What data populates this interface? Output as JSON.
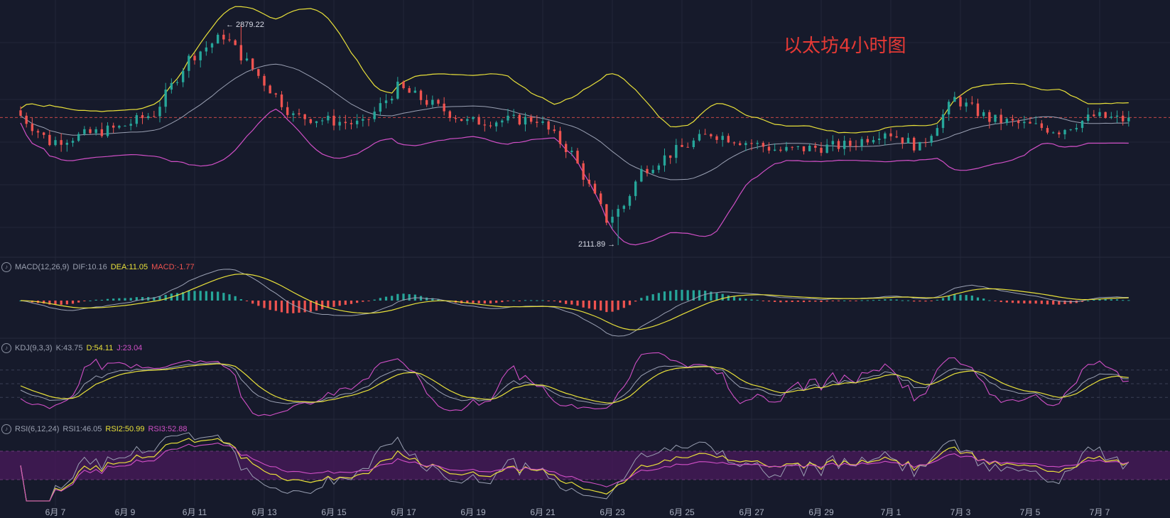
{
  "title": "以太坊4小时图",
  "annotations": {
    "high": "← 2879.22",
    "low": "2111.89 →"
  },
  "legends": {
    "macd": {
      "name": "MACD(12,26,9)",
      "dif": "DIF:10.16",
      "dea": "DEA:11.05",
      "macd": "MACD:-1.77"
    },
    "kdj": {
      "name": "KDJ(9,3,3)",
      "k": "K:43.75",
      "d": "D:54.11",
      "j": "J:23.04"
    },
    "rsi": {
      "name": "RSI(6,12,24)",
      "rsi1": "RSI1:46.05",
      "rsi2": "RSI2:50.99",
      "rsi3": "RSI3:52.88"
    }
  },
  "x_ticks": [
    "6月 7",
    "6月 9",
    "6月 11",
    "6月 13",
    "6月 15",
    "6月 17",
    "6月 19",
    "6月 21",
    "6月 23",
    "6月 25",
    "6月 27",
    "6月 29",
    "7月 1",
    "7月 3",
    "7月 5",
    "7月 7"
  ],
  "colors": {
    "up": "#26a69a",
    "down": "#ef5350",
    "bb_upper": "#e8e03a",
    "bb_mid": "#9aa0b3",
    "bb_lower": "#d04fc6",
    "title": "#e53935",
    "rsi_band": "#4a1a5c",
    "grid": "#222638"
  },
  "chart_data": {
    "type": "candlestick",
    "title": "以太坊4小时图",
    "x_tick_labels": [
      "6月 7",
      "6月 9",
      "6月 11",
      "6月 13",
      "6月 15",
      "6月 17",
      "6月 19",
      "6月 21",
      "6月 23",
      "6月 25",
      "6月 27",
      "6月 29",
      "7月 1",
      "7月 3",
      "7月 5",
      "7月 7"
    ],
    "highest_high": 2879.22,
    "lowest_low": 2111.89,
    "close_path_keypoints": [
      {
        "date": "6月 6",
        "price": 2580
      },
      {
        "date": "6月 7",
        "price": 2470
      },
      {
        "date": "6月 9",
        "price": 2520
      },
      {
        "date": "6月 10",
        "price": 2570
      },
      {
        "date": "6月 11",
        "price": 2760
      },
      {
        "date": "6月 12",
        "price": 2840
      },
      {
        "date": "6月 13",
        "price": 2700
      },
      {
        "date": "6月 14",
        "price": 2560
      },
      {
        "date": "6月 16",
        "price": 2530
      },
      {
        "date": "6月 17",
        "price": 2660
      },
      {
        "date": "6月 19",
        "price": 2540
      },
      {
        "date": "6月 21",
        "price": 2550
      },
      {
        "date": "6月 22",
        "price": 2430
      },
      {
        "date": "6月 23",
        "price": 2200
      },
      {
        "date": "6月 23.5",
        "price": 2250
      },
      {
        "date": "6月 24",
        "price": 2370
      },
      {
        "date": "6月 25",
        "price": 2440
      },
      {
        "date": "6月 26",
        "price": 2500
      },
      {
        "date": "6月 28",
        "price": 2440
      },
      {
        "date": "6月 30",
        "price": 2460
      },
      {
        "date": "7月 1",
        "price": 2510
      },
      {
        "date": "7月 2",
        "price": 2450
      },
      {
        "date": "7月 3",
        "price": 2620
      },
      {
        "date": "7月 4",
        "price": 2550
      },
      {
        "date": "7月 6",
        "price": 2510
      },
      {
        "date": "7月 7",
        "price": 2560
      },
      {
        "date": "7月 8",
        "price": 2545
      }
    ],
    "panels": {
      "macd": {
        "dif": 10.16,
        "dea": 11.05,
        "macd": -1.77
      },
      "kdj": {
        "k": 43.75,
        "d": 54.11,
        "j": 23.04
      },
      "rsi": {
        "rsi1": 46.05,
        "rsi2": 50.99,
        "rsi3": 52.88
      }
    },
    "bollinger": true,
    "grid": true
  }
}
